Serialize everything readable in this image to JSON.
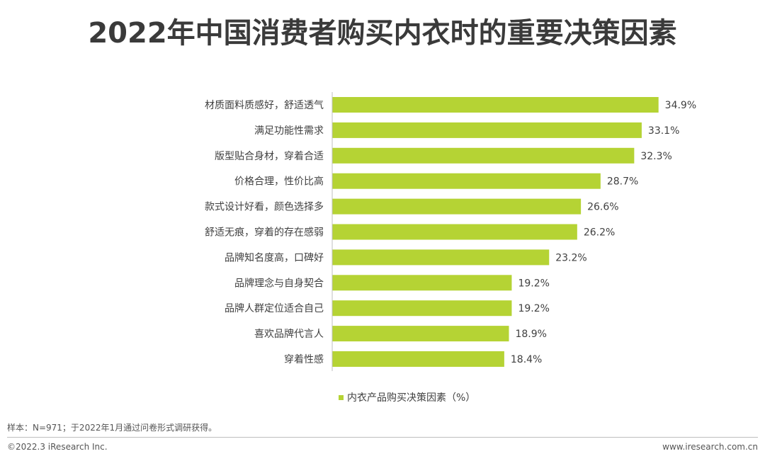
{
  "title": "2022年中国消费者购买内衣时的重要决策因素",
  "colors": {
    "bar": "#b5d334",
    "axis": "#bfbfbf"
  },
  "chart_data": {
    "type": "bar",
    "orientation": "horizontal",
    "categories": [
      "材质面料质感好，舒适透气",
      "满足功能性需求",
      "版型贴合身材，穿着合适",
      "价格合理，性价比高",
      "款式设计好看，颜色选择多",
      "舒适无痕，穿着的存在感弱",
      "品牌知名度高，口碑好",
      "品牌理念与自身契合",
      "品牌人群定位适合自己",
      "喜欢品牌代言人",
      "穿着性感"
    ],
    "series": [
      {
        "name": "内衣产品购买决策因素（%）",
        "values": [
          34.9,
          33.1,
          32.3,
          28.7,
          26.6,
          26.2,
          23.2,
          19.2,
          19.2,
          18.9,
          18.4
        ]
      }
    ],
    "value_labels": [
      "34.9%",
      "33.1%",
      "32.3%",
      "28.7%",
      "26.6%",
      "26.2%",
      "23.2%",
      "19.2%",
      "19.2%",
      "18.9%",
      "18.4%"
    ],
    "xlim": [
      0,
      35
    ],
    "grid": false,
    "legend_position": "bottom"
  },
  "source_note": "样本：N=971；于2022年1月通过问卷形式调研获得。",
  "footer": {
    "copyright": "©2022.3 iResearch Inc.",
    "website": "www.iresearch.com.cn"
  }
}
